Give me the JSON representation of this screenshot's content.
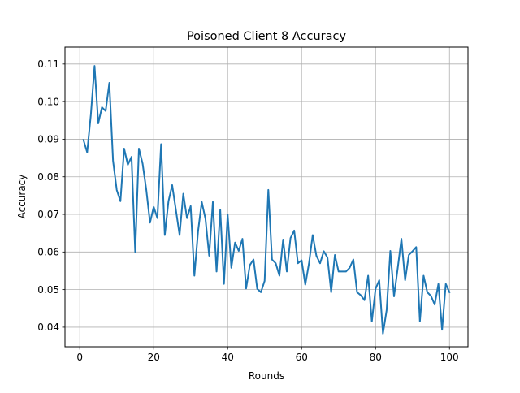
{
  "chart_data": {
    "type": "line",
    "title": "Poisoned Client 8 Accuracy",
    "xlabel": "Rounds",
    "ylabel": "Accuracy",
    "xlim": [
      -4,
      105
    ],
    "ylim": [
      0.0348,
      0.1145
    ],
    "xticks": [
      0,
      20,
      40,
      60,
      80,
      100
    ],
    "yticks": [
      0.04,
      0.05,
      0.06,
      0.07,
      0.08,
      0.09,
      0.1,
      0.11
    ],
    "xtick_labels": [
      "0",
      "20",
      "40",
      "60",
      "80",
      "100"
    ],
    "ytick_labels": [
      "0.04",
      "0.05",
      "0.06",
      "0.07",
      "0.08",
      "0.09",
      "0.10",
      "0.11"
    ],
    "grid": true,
    "series": [
      {
        "color": "#1f77b4",
        "x": [
          1,
          2,
          3,
          4,
          5,
          6,
          7,
          8,
          9,
          10,
          11,
          12,
          13,
          14,
          15,
          16,
          17,
          18,
          19,
          20,
          21,
          22,
          23,
          24,
          25,
          26,
          27,
          28,
          29,
          30,
          31,
          32,
          33,
          34,
          35,
          36,
          37,
          38,
          39,
          40,
          41,
          42,
          43,
          44,
          45,
          46,
          47,
          48,
          49,
          50,
          51,
          52,
          53,
          54,
          55,
          56,
          57,
          58,
          59,
          60,
          61,
          62,
          63,
          64,
          65,
          66,
          67,
          68,
          69,
          70,
          71,
          72,
          73,
          74,
          75,
          76,
          77,
          78,
          79,
          80,
          81,
          82,
          83,
          84,
          85,
          86,
          87,
          88,
          89,
          90,
          91,
          92,
          93,
          94,
          95,
          96,
          97,
          98,
          99,
          100
        ],
        "y": [
          0.0898,
          0.0865,
          0.0965,
          0.1095,
          0.0942,
          0.0985,
          0.0975,
          0.105,
          0.0843,
          0.0765,
          0.0735,
          0.0875,
          0.0832,
          0.0853,
          0.06,
          0.0875,
          0.0835,
          0.0765,
          0.0678,
          0.072,
          0.069,
          0.0887,
          0.0645,
          0.0735,
          0.0778,
          0.0712,
          0.0645,
          0.0755,
          0.069,
          0.0722,
          0.0537,
          0.0655,
          0.0733,
          0.0688,
          0.059,
          0.0733,
          0.0548,
          0.0712,
          0.0515,
          0.07,
          0.0558,
          0.0625,
          0.0603,
          0.0635,
          0.0503,
          0.0565,
          0.058,
          0.0502,
          0.0493,
          0.0523,
          0.0765,
          0.058,
          0.057,
          0.0537,
          0.0633,
          0.0548,
          0.0637,
          0.0657,
          0.057,
          0.0578,
          0.0513,
          0.057,
          0.0645,
          0.059,
          0.057,
          0.0602,
          0.0585,
          0.0493,
          0.0592,
          0.0548,
          0.0548,
          0.0548,
          0.0558,
          0.058,
          0.0493,
          0.0485,
          0.0472,
          0.0537,
          0.0415,
          0.0502,
          0.0525,
          0.0383,
          0.0445,
          0.0603,
          0.0482,
          0.0557,
          0.0635,
          0.0525,
          0.0592,
          0.0602,
          0.0613,
          0.0415,
          0.0537,
          0.0493,
          0.0483,
          0.046,
          0.0515,
          0.0393,
          0.0515,
          0.0493
        ]
      }
    ]
  }
}
